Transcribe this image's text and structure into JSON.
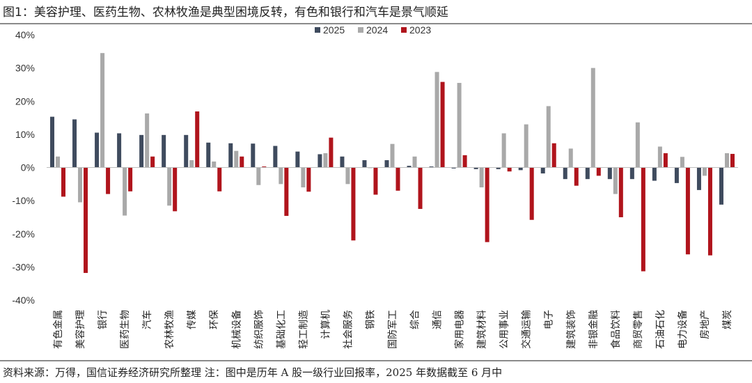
{
  "title": "图1：美容护理、医药生物、农林牧渔是典型困境反转，有色和银行和汽车是景气顺延",
  "footnote": "资料来源：万得，国信证券经济研究所整理 注：图中是历年 A 股一级行业回报率，2025 年数据截至 6 月中",
  "colors": {
    "s2025": "#3f4b5e",
    "s2024": "#a9a9a9",
    "s2023": "#b0141c"
  },
  "chart_data": {
    "type": "bar",
    "categories": [
      "有色金属",
      "美容护理",
      "银行",
      "医药生物",
      "汽车",
      "农林牧渔",
      "传媒",
      "环保",
      "机械设备",
      "纺织服饰",
      "基础化工",
      "轻工制造",
      "计算机",
      "社会服务",
      "钢铁",
      "国防军工",
      "综合",
      "通信",
      "家用电器",
      "建筑材料",
      "公用事业",
      "交通运输",
      "电子",
      "建筑装饰",
      "非银金融",
      "食品饮料",
      "商贸零售",
      "石油石化",
      "电力设备",
      "房地产",
      "煤炭"
    ],
    "series": [
      {
        "name": "2025",
        "values": [
          15.3,
          14.5,
          10.5,
          10.3,
          9.8,
          9.8,
          9.8,
          7.5,
          7.3,
          7.2,
          6.5,
          4.8,
          4.0,
          3.3,
          2.2,
          2.2,
          0.5,
          0.3,
          -0.3,
          -0.5,
          -0.5,
          -0.8,
          -1.8,
          -3.5,
          -3.5,
          -3.5,
          -3.5,
          -4.0,
          -4.7,
          -6.8,
          -11.2
        ]
      },
      {
        "name": "2024",
        "values": [
          3.3,
          -10.5,
          34.5,
          -14.5,
          16.3,
          -11.5,
          2.2,
          1.8,
          5.0,
          -5.3,
          -5.0,
          -6.0,
          4.3,
          -5.0,
          -0.2,
          7.1,
          3.3,
          28.8,
          25.5,
          -6.0,
          10.3,
          13.0,
          18.5,
          5.7,
          30.0,
          -8.0,
          13.6,
          6.3,
          3.2,
          -2.5,
          4.3
        ]
      },
      {
        "name": "2023",
        "values": [
          -8.8,
          -31.8,
          -8.0,
          -7.2,
          3.3,
          -13.2,
          16.9,
          -7.2,
          3.3,
          0.3,
          -14.6,
          -7.3,
          9.0,
          -22.0,
          -8.2,
          -7.0,
          -12.5,
          25.8,
          3.7,
          -22.5,
          -1.2,
          -15.8,
          7.3,
          -5.5,
          -2.5,
          -15.0,
          -31.3,
          4.3,
          -26.2,
          -26.5,
          4.1
        ]
      }
    ],
    "y_tick_labels": [
      "40%",
      "30%",
      "20%",
      "10%",
      "0%",
      "-10%",
      "-20%",
      "-30%",
      "-40%"
    ],
    "ylim": [
      -40,
      40
    ],
    "legend_position": "top-center",
    "grid": false
  }
}
